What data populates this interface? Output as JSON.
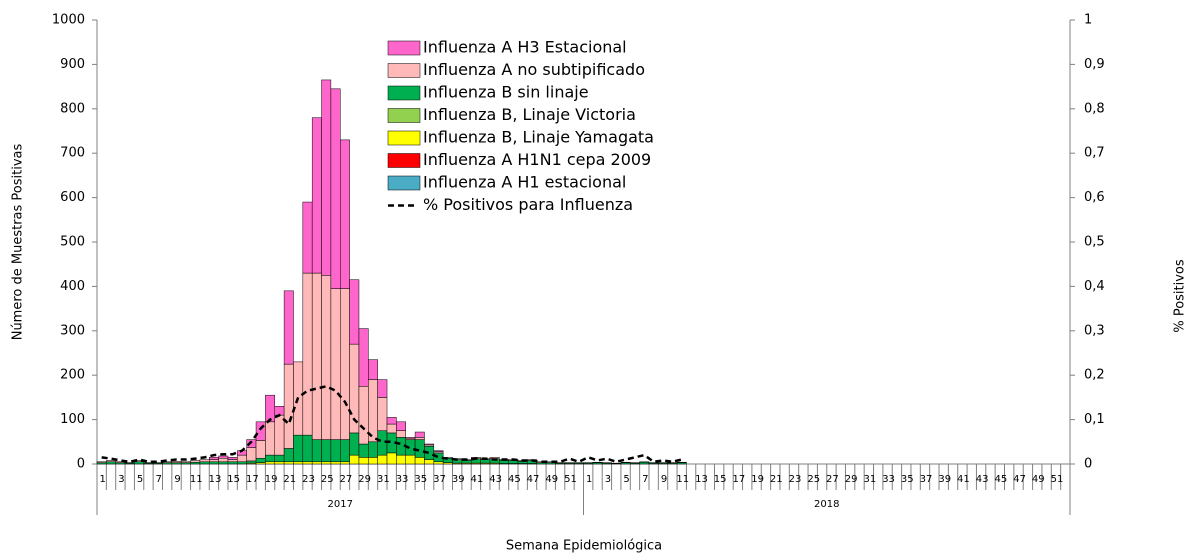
{
  "chart_data": {
    "type": "bar",
    "ylabel": "Número de Muestras Positivas",
    "y2label": "% Positivos",
    "xlabel": "Semana Epidemiológica",
    "years": [
      "2017",
      "2018"
    ],
    "categories": [
      "1",
      null,
      "3",
      null,
      "5",
      null,
      "7",
      null,
      "9",
      null,
      "11",
      null,
      "13",
      null,
      "15",
      null,
      "17",
      null,
      "19",
      null,
      "21",
      null,
      "23",
      null,
      "25",
      null,
      "27",
      null,
      "29",
      null,
      "31",
      null,
      "33",
      null,
      "35",
      null,
      "37",
      null,
      "39",
      null,
      "41",
      null,
      "43",
      null,
      "45",
      null,
      "47",
      null,
      "49",
      null,
      "51",
      null,
      "1",
      null,
      "3",
      null,
      "5",
      null,
      "7",
      null,
      "9",
      null,
      "11",
      null,
      "13",
      null,
      "15",
      null,
      "17",
      null,
      "19",
      null,
      "21",
      null,
      "23",
      null,
      "25",
      null,
      "27",
      null,
      "29",
      null,
      "31",
      null,
      "33",
      null,
      "35",
      null,
      "37",
      null,
      "39",
      null,
      "41",
      null,
      "43",
      null,
      "45",
      null,
      "47",
      null,
      "49",
      null,
      "51",
      null
    ],
    "ylim": [
      0,
      1000
    ],
    "yticks": [
      0,
      100,
      200,
      300,
      400,
      500,
      600,
      700,
      800,
      900,
      1000
    ],
    "y2lim": [
      0,
      1
    ],
    "y2ticks": [
      0,
      {
        "value": 0.1,
        "label": "0,1"
      },
      {
        "value": 0.2,
        "label": "0,2"
      },
      {
        "value": 0.3,
        "label": "0,3"
      },
      {
        "value": 0.4,
        "label": "0,4"
      },
      {
        "value": 0.5,
        "label": "0,5"
      },
      {
        "value": 0.6,
        "label": "0,6"
      },
      {
        "value": 0.7,
        "label": "0,7"
      },
      {
        "value": 0.8,
        "label": "0,8"
      },
      {
        "value": 0.9,
        "label": "0,9"
      },
      1
    ],
    "stacked": true,
    "legend": "upper center",
    "series": [
      {
        "name": "Influenza A H3 Estacional",
        "color": "#ff66cc",
        "values": [
          0,
          0,
          0,
          0,
          0,
          0,
          0,
          0,
          0,
          0,
          0,
          0,
          5,
          5,
          5,
          10,
          18,
          42,
          60,
          20,
          165,
          0,
          160,
          350,
          440,
          450,
          335,
          145,
          130,
          45,
          40,
          15,
          20,
          2,
          12,
          2,
          2,
          0,
          0,
          0,
          0,
          0,
          0,
          0,
          0,
          0,
          0,
          0,
          0,
          0,
          0,
          0,
          0,
          0,
          0,
          0,
          0,
          0,
          0,
          0,
          0,
          0,
          0,
          null,
          null,
          null,
          null,
          null,
          null,
          null,
          null,
          null,
          null,
          null,
          null,
          null,
          null,
          null,
          null,
          null,
          null,
          null,
          null,
          null,
          null,
          null,
          null,
          null,
          null,
          null,
          null,
          null,
          null,
          null,
          null,
          null,
          null,
          null,
          null,
          null,
          null,
          null,
          null,
          null
        ]
      },
      {
        "name": "Influenza A no subtipificado",
        "color": "#ffb9b9",
        "values": [
          2,
          3,
          2,
          1,
          3,
          1,
          1,
          2,
          3,
          2,
          4,
          5,
          5,
          8,
          5,
          15,
          30,
          40,
          75,
          90,
          190,
          165,
          365,
          375,
          370,
          340,
          340,
          200,
          130,
          140,
          75,
          20,
          15,
          3,
          5,
          3,
          3,
          2,
          2,
          2,
          3,
          2,
          3,
          2,
          2,
          2,
          2,
          2,
          2,
          1,
          1,
          1,
          1,
          1,
          1,
          1,
          1,
          1,
          1,
          1,
          1,
          1,
          1,
          null,
          null,
          null,
          null,
          null,
          null,
          null,
          null,
          null,
          null,
          null,
          null,
          null,
          null,
          null,
          null,
          null,
          null,
          null,
          null,
          null,
          null,
          null,
          null,
          null,
          null,
          null,
          null,
          null,
          null,
          null,
          null,
          null,
          null,
          null,
          null,
          null,
          null,
          null,
          null,
          null
        ]
      },
      {
        "name": "Influenza B sin linaje",
        "color": "#00b050",
        "values": [
          3,
          5,
          3,
          2,
          5,
          2,
          2,
          3,
          3,
          3,
          4,
          5,
          5,
          5,
          5,
          5,
          5,
          10,
          15,
          15,
          30,
          60,
          60,
          50,
          50,
          50,
          50,
          50,
          30,
          35,
          55,
          45,
          40,
          35,
          40,
          30,
          20,
          10,
          8,
          6,
          10,
          8,
          10,
          7,
          7,
          5,
          7,
          3,
          3,
          2,
          2,
          2,
          2,
          3,
          2,
          1,
          3,
          2,
          4,
          2,
          2,
          2,
          3,
          null,
          null,
          null,
          null,
          null,
          null,
          null,
          null,
          null,
          null,
          null,
          null,
          null,
          null,
          null,
          null,
          null,
          null,
          null,
          null,
          null,
          null,
          null,
          null,
          null,
          null,
          null,
          null,
          null,
          null,
          null,
          null,
          null,
          null,
          null,
          null,
          null,
          null,
          null,
          null,
          null
        ]
      },
      {
        "name": "Influenza B, Linaje Victoria",
        "color": "#92d050",
        "values": [
          0,
          0,
          0,
          0,
          0,
          0,
          0,
          0,
          0,
          0,
          0,
          0,
          0,
          0,
          0,
          0,
          0,
          0,
          0,
          0,
          0,
          0,
          0,
          0,
          0,
          0,
          0,
          0,
          0,
          0,
          0,
          0,
          0,
          0,
          0,
          0,
          0,
          0,
          0,
          0,
          0,
          0,
          0,
          0,
          0,
          0,
          0,
          0,
          0,
          0,
          0,
          0,
          0,
          0,
          0,
          0,
          0,
          0,
          0,
          0,
          0,
          0,
          0,
          null,
          null,
          null,
          null,
          null,
          null,
          null,
          null,
          null,
          null,
          null,
          null,
          null,
          null,
          null,
          null,
          null,
          null,
          null,
          null,
          null,
          null,
          null,
          null,
          null,
          null,
          null,
          null,
          null,
          null,
          null,
          null,
          null,
          null,
          null,
          null,
          null,
          null,
          null,
          null,
          null
        ]
      },
      {
        "name": "Influenza B, Linaje Yamagata",
        "color": "#ffff00",
        "values": [
          0,
          0,
          0,
          0,
          0,
          0,
          0,
          0,
          0,
          0,
          0,
          0,
          0,
          0,
          0,
          0,
          2,
          3,
          5,
          5,
          5,
          5,
          5,
          5,
          5,
          5,
          5,
          20,
          15,
          15,
          20,
          25,
          20,
          20,
          15,
          10,
          5,
          3,
          2,
          2,
          2,
          2,
          2,
          1,
          1,
          1,
          1,
          0,
          0,
          0,
          0,
          0,
          0,
          0,
          0,
          0,
          0,
          0,
          0,
          0,
          0,
          0,
          0,
          null,
          null,
          null,
          null,
          null,
          null,
          null,
          null,
          null,
          null,
          null,
          null,
          null,
          null,
          null,
          null,
          null,
          null,
          null,
          null,
          null,
          null,
          null,
          null,
          null,
          null,
          null,
          null,
          null,
          null,
          null,
          null,
          null,
          null,
          null,
          null,
          null,
          null,
          null,
          null,
          null
        ]
      },
      {
        "name": "Influenza A H1N1 cepa 2009",
        "color": "#ff0000",
        "values": [
          0,
          0,
          0,
          0,
          0,
          0,
          0,
          0,
          0,
          0,
          0,
          0,
          0,
          0,
          0,
          0,
          0,
          0,
          0,
          0,
          0,
          0,
          0,
          0,
          0,
          0,
          0,
          0,
          0,
          0,
          0,
          0,
          0,
          0,
          0,
          0,
          0,
          0,
          0,
          0,
          0,
          0,
          0,
          0,
          0,
          0,
          0,
          0,
          0,
          0,
          0,
          0,
          0,
          0,
          0,
          0,
          0,
          0,
          0,
          0,
          0,
          0,
          0,
          null,
          null,
          null,
          null,
          null,
          null,
          null,
          null,
          null,
          null,
          null,
          null,
          null,
          null,
          null,
          null,
          null,
          null,
          null,
          null,
          null,
          null,
          null,
          null,
          null,
          null,
          null,
          null,
          null,
          null,
          null,
          null,
          null,
          null,
          null,
          null,
          null,
          null,
          null,
          null,
          null
        ]
      },
      {
        "name": "Influenza A H1 estacional",
        "color": "#4bacc6",
        "values": [
          0,
          0,
          0,
          0,
          0,
          0,
          0,
          0,
          0,
          0,
          0,
          0,
          0,
          0,
          0,
          0,
          0,
          0,
          0,
          0,
          0,
          0,
          0,
          0,
          0,
          0,
          0,
          0,
          0,
          0,
          0,
          0,
          0,
          0,
          0,
          0,
          0,
          0,
          0,
          0,
          0,
          0,
          0,
          0,
          0,
          0,
          0,
          0,
          0,
          0,
          0,
          0,
          0,
          0,
          0,
          0,
          0,
          0,
          0,
          0,
          0,
          0,
          0,
          null,
          null,
          null,
          null,
          null,
          null,
          null,
          null,
          null,
          null,
          null,
          null,
          null,
          null,
          null,
          null,
          null,
          null,
          null,
          null,
          null,
          null,
          null,
          null,
          null,
          null,
          null,
          null,
          null,
          null,
          null,
          null,
          null,
          null,
          null,
          null,
          null,
          null,
          null,
          null,
          null
        ]
      },
      {
        "name": "% Positivos para Influenza",
        "color": "#000000",
        "type": "line",
        "axis": "y2",
        "values": [
          0.015,
          0.012,
          0.008,
          0.005,
          0.01,
          0.005,
          0.005,
          0.008,
          0.01,
          0.01,
          0.012,
          0.015,
          0.02,
          0.022,
          0.022,
          0.03,
          0.05,
          0.08,
          0.1,
          0.11,
          0.09,
          0.15,
          0.165,
          0.17,
          0.175,
          0.165,
          0.14,
          0.1,
          0.08,
          0.06,
          0.05,
          0.05,
          0.045,
          0.035,
          0.03,
          0.025,
          0.015,
          0.012,
          0.01,
          0.01,
          0.012,
          0.012,
          0.01,
          0.01,
          0.01,
          0.008,
          0.008,
          0.005,
          0.005,
          0.005,
          0.012,
          0.005,
          0.015,
          0.008,
          0.012,
          0.005,
          0.01,
          0.015,
          0.02,
          0.005,
          0.008,
          0.005,
          0.01,
          null,
          null,
          null,
          null,
          null,
          null,
          null,
          null,
          null,
          null,
          null,
          null,
          null,
          null,
          null,
          null,
          null,
          null,
          null,
          null,
          null,
          null,
          null,
          null,
          null,
          null,
          null,
          null,
          null,
          null,
          null,
          null,
          null,
          null,
          null,
          null,
          null,
          null,
          null,
          null,
          null
        ]
      }
    ]
  }
}
